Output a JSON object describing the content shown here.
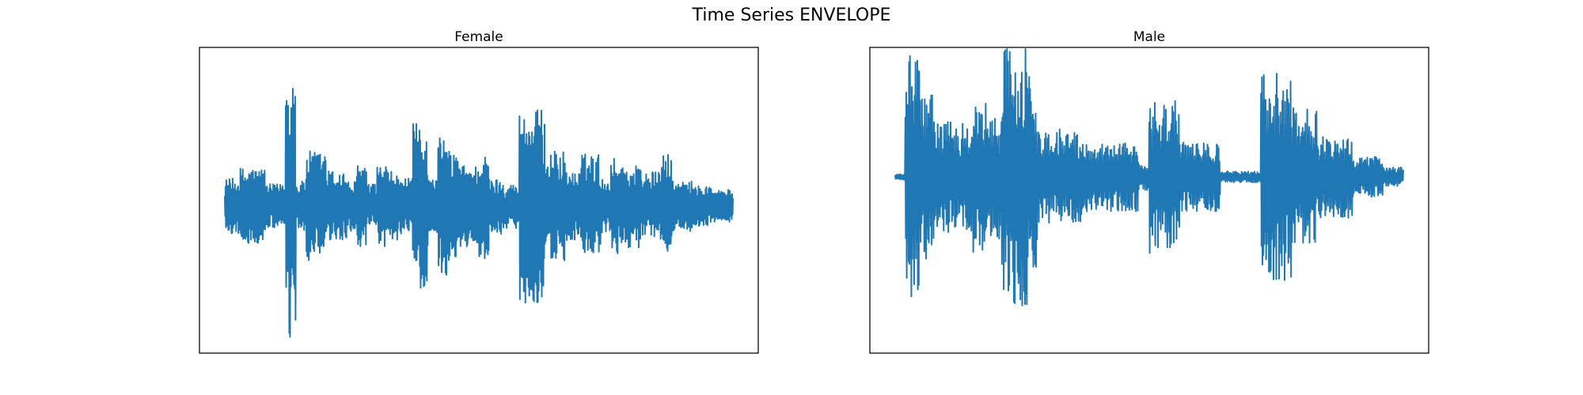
{
  "figure": {
    "title": "Time Series ENVELOPE"
  },
  "chart_data": [
    {
      "type": "line",
      "title": "Female",
      "xlabel": "",
      "ylabel": "",
      "x_ticks": "hidden",
      "y_ticks": "hidden",
      "grid": false,
      "color": "#1f77b4",
      "ylim": [
        -1.05,
        1.05
      ],
      "n_samples": 1300,
      "segments": [
        {
          "start": 0.0,
          "end": 0.03,
          "amp": 0.2
        },
        {
          "start": 0.03,
          "end": 0.08,
          "amp": 0.28
        },
        {
          "start": 0.08,
          "end": 0.12,
          "amp": 0.16
        },
        {
          "start": 0.12,
          "end": 0.14,
          "amp": 1.0
        },
        {
          "start": 0.14,
          "end": 0.16,
          "amp": 0.18
        },
        {
          "start": 0.16,
          "end": 0.2,
          "amp": 0.4
        },
        {
          "start": 0.2,
          "end": 0.24,
          "amp": 0.26
        },
        {
          "start": 0.24,
          "end": 0.26,
          "amp": 0.18
        },
        {
          "start": 0.26,
          "end": 0.28,
          "amp": 0.32
        },
        {
          "start": 0.28,
          "end": 0.3,
          "amp": 0.16
        },
        {
          "start": 0.3,
          "end": 0.32,
          "amp": 0.3
        },
        {
          "start": 0.32,
          "end": 0.34,
          "amp": 0.25
        },
        {
          "start": 0.34,
          "end": 0.37,
          "amp": 0.2
        },
        {
          "start": 0.37,
          "end": 0.4,
          "amp": 0.6
        },
        {
          "start": 0.4,
          "end": 0.42,
          "amp": 0.2
        },
        {
          "start": 0.42,
          "end": 0.44,
          "amp": 0.5
        },
        {
          "start": 0.44,
          "end": 0.46,
          "amp": 0.4
        },
        {
          "start": 0.46,
          "end": 0.5,
          "amp": 0.3
        },
        {
          "start": 0.5,
          "end": 0.52,
          "amp": 0.38
        },
        {
          "start": 0.52,
          "end": 0.55,
          "amp": 0.2
        },
        {
          "start": 0.55,
          "end": 0.58,
          "amp": 0.16
        },
        {
          "start": 0.58,
          "end": 0.63,
          "amp": 0.7
        },
        {
          "start": 0.63,
          "end": 0.67,
          "amp": 0.4
        },
        {
          "start": 0.67,
          "end": 0.7,
          "amp": 0.25
        },
        {
          "start": 0.7,
          "end": 0.74,
          "amp": 0.38
        },
        {
          "start": 0.74,
          "end": 0.76,
          "amp": 0.2
        },
        {
          "start": 0.76,
          "end": 0.78,
          "amp": 0.35
        },
        {
          "start": 0.78,
          "end": 0.82,
          "amp": 0.3
        },
        {
          "start": 0.82,
          "end": 0.86,
          "amp": 0.25
        },
        {
          "start": 0.86,
          "end": 0.88,
          "amp": 0.38
        },
        {
          "start": 0.88,
          "end": 0.92,
          "amp": 0.18
        },
        {
          "start": 0.92,
          "end": 0.96,
          "amp": 0.15
        },
        {
          "start": 0.96,
          "end": 1.0,
          "amp": 0.12
        }
      ]
    },
    {
      "type": "line",
      "title": "Male",
      "xlabel": "",
      "ylabel": "",
      "x_ticks": "hidden",
      "y_ticks": "hidden",
      "grid": false,
      "color": "#1f77b4",
      "ylim": [
        -1.05,
        1.05
      ],
      "n_samples": 1100,
      "segments": [
        {
          "start": 0.0,
          "end": 0.02,
          "amp": 0.02
        },
        {
          "start": 0.02,
          "end": 0.05,
          "amp": 0.9
        },
        {
          "start": 0.05,
          "end": 0.08,
          "amp": 0.6
        },
        {
          "start": 0.08,
          "end": 0.15,
          "amp": 0.4
        },
        {
          "start": 0.15,
          "end": 0.18,
          "amp": 0.55
        },
        {
          "start": 0.18,
          "end": 0.21,
          "amp": 0.45
        },
        {
          "start": 0.21,
          "end": 0.26,
          "amp": 0.95
        },
        {
          "start": 0.26,
          "end": 0.28,
          "amp": 0.75
        },
        {
          "start": 0.28,
          "end": 0.37,
          "amp": 0.35
        },
        {
          "start": 0.37,
          "end": 0.48,
          "amp": 0.25
        },
        {
          "start": 0.48,
          "end": 0.5,
          "amp": 0.1
        },
        {
          "start": 0.5,
          "end": 0.56,
          "amp": 0.55
        },
        {
          "start": 0.56,
          "end": 0.64,
          "amp": 0.25
        },
        {
          "start": 0.64,
          "end": 0.72,
          "amp": 0.04
        },
        {
          "start": 0.72,
          "end": 0.78,
          "amp": 0.75
        },
        {
          "start": 0.78,
          "end": 0.83,
          "amp": 0.5
        },
        {
          "start": 0.83,
          "end": 0.9,
          "amp": 0.3
        },
        {
          "start": 0.9,
          "end": 0.96,
          "amp": 0.15
        },
        {
          "start": 0.96,
          "end": 1.0,
          "amp": 0.07
        }
      ]
    }
  ]
}
